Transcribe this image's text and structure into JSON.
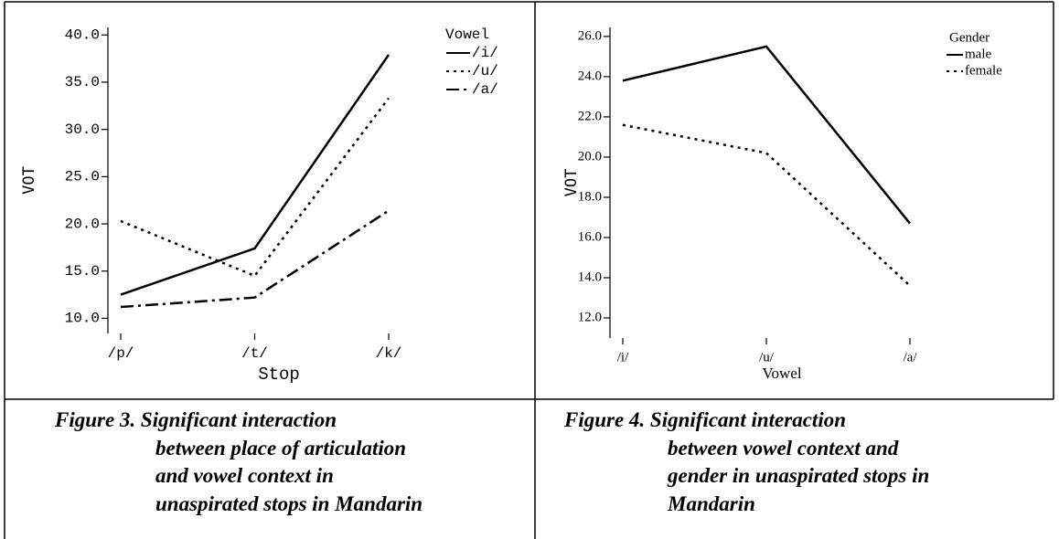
{
  "chart_data": [
    {
      "type": "line",
      "y_label": "VOT",
      "x_label": "Stop",
      "legend_title": "Vowel",
      "categories": [
        "/p/",
        "/t/",
        "/k/"
      ],
      "ylim": [
        8.4,
        40.8
      ],
      "yticks": [
        {
          "value": 10,
          "label": "10.0"
        },
        {
          "value": 15,
          "label": "15.0"
        },
        {
          "value": 20,
          "label": "20.0"
        },
        {
          "value": 25,
          "label": "25.0"
        },
        {
          "value": 30,
          "label": "30.0"
        },
        {
          "value": 35,
          "label": "35.0"
        },
        {
          "value": 40,
          "label": "40.0"
        }
      ],
      "series": [
        {
          "name": "/i/",
          "color": "#000000",
          "dash": "solid",
          "values": [
            12.5,
            17.4,
            37.9
          ]
        },
        {
          "name": "/u/",
          "color": "#000000",
          "dash": "dotted",
          "values": [
            20.3,
            14.5,
            33.3
          ]
        },
        {
          "name": "/a/",
          "color": "#000000",
          "dash": "dashdot",
          "values": [
            11.2,
            12.2,
            21.4
          ]
        }
      ],
      "caption": [
        "Figure 3. Significant interaction",
        "between place of articulation",
        "and vowel context in",
        "unaspirated stops in Mandarin"
      ]
    },
    {
      "type": "line",
      "y_label": "VOT",
      "x_label": "Vowel",
      "legend_title": "Gender",
      "categories": [
        "/i/",
        "/u/",
        "/a/"
      ],
      "ylim": [
        11,
        26.45
      ],
      "yticks": [
        {
          "value": 12,
          "label": "12.0"
        },
        {
          "value": 14,
          "label": "14.0"
        },
        {
          "value": 16,
          "label": "16.0"
        },
        {
          "value": 18,
          "label": "18.0"
        },
        {
          "value": 20,
          "label": "20.0"
        },
        {
          "value": 22,
          "label": "22.0"
        },
        {
          "value": 24,
          "label": "24.0"
        },
        {
          "value": 26,
          "label": "26.0"
        }
      ],
      "series": [
        {
          "name": "male",
          "color": "#000000",
          "dash": "solid",
          "values": [
            23.8,
            25.5,
            16.7
          ]
        },
        {
          "name": "female",
          "color": "#000000",
          "dash": "dotted",
          "values": [
            21.6,
            20.2,
            13.6
          ]
        }
      ],
      "caption": [
        "Figure 4. Significant interaction",
        "between vowel context and",
        "gender in unaspirated stops in",
        "Mandarin"
      ]
    }
  ]
}
